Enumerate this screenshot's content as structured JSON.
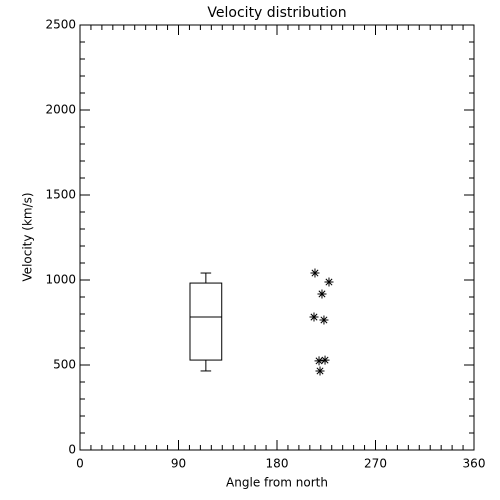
{
  "chart_data": {
    "type": "box",
    "title": "Velocity distribution",
    "xlabel": "Angle from north",
    "ylabel": "Velocity (km/s)",
    "xlim": [
      0,
      360
    ],
    "xticks": [
      0,
      90,
      180,
      270,
      360
    ],
    "xminorticks": [
      10,
      20,
      30,
      40,
      50,
      60,
      70,
      80,
      100,
      110,
      120,
      130,
      140,
      150,
      160,
      170,
      190,
      200,
      210,
      220,
      230,
      240,
      250,
      260,
      280,
      290,
      300,
      310,
      320,
      330,
      340,
      350
    ],
    "ylim": [
      0,
      2500
    ],
    "yticks": [
      0,
      500,
      1000,
      1500,
      2000,
      2500
    ],
    "yminorticks": [
      100,
      200,
      300,
      400,
      600,
      700,
      800,
      900,
      1100,
      1200,
      1300,
      1400,
      1600,
      1700,
      1800,
      1900,
      2100,
      2200,
      2300,
      2400
    ],
    "box": {
      "x": 115,
      "width": 29,
      "whislo": 465,
      "q1": 529,
      "med": 782,
      "q3": 982,
      "whishi": 1041
    },
    "scatter": {
      "x": [
        214.7,
        227.5,
        221.1,
        213.8,
        222.9,
        218.4,
        223.9,
        219.3
      ],
      "y": [
        1041,
        988,
        918,
        782,
        765,
        524,
        529,
        465
      ]
    },
    "color": "#000000"
  }
}
